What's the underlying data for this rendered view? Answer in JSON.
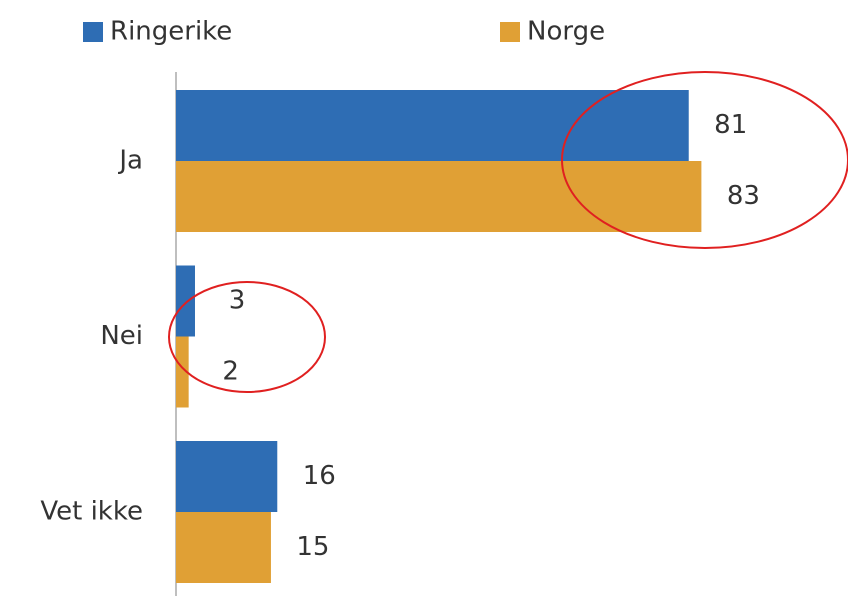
{
  "chart_data": {
    "type": "bar",
    "orientation": "horizontal",
    "categories": [
      "Ja",
      "Nei",
      "Vet ikke"
    ],
    "series": [
      {
        "name": "Ringerike",
        "color": "#2e6db4",
        "values": [
          81,
          3,
          16
        ]
      },
      {
        "name": "Norge",
        "color": "#e0a035",
        "values": [
          83,
          2,
          15
        ]
      }
    ]
  }
}
